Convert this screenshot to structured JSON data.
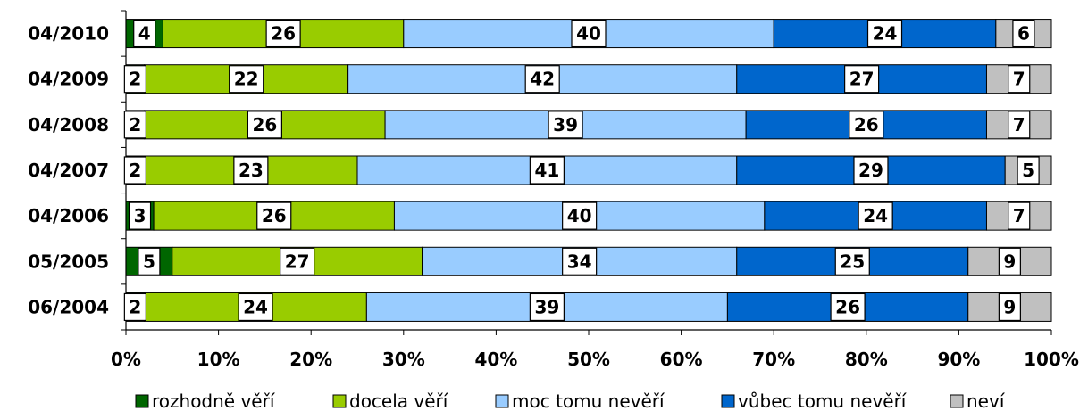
{
  "chart_data": {
    "type": "bar",
    "orientation": "horizontal",
    "stacked": "percent",
    "categories": [
      "04/2010",
      "04/2009",
      "04/2008",
      "04/2007",
      "04/2006",
      "05/2005",
      "06/2004"
    ],
    "series": [
      {
        "name": "rozhodně věří",
        "color": "#006600",
        "values": [
          4,
          2,
          2,
          2,
          3,
          5,
          2
        ]
      },
      {
        "name": "docela věří",
        "color": "#99cc00",
        "values": [
          26,
          22,
          26,
          23,
          26,
          27,
          24
        ]
      },
      {
        "name": "moc tomu nevěří",
        "color": "#99ccff",
        "values": [
          40,
          42,
          39,
          41,
          40,
          34,
          39
        ]
      },
      {
        "name": "vůbec tomu nevěří",
        "color": "#0066cc",
        "values": [
          24,
          27,
          26,
          29,
          24,
          25,
          26
        ]
      },
      {
        "name": "neví",
        "color": "#c0c0c0",
        "values": [
          6,
          7,
          7,
          5,
          7,
          9,
          9
        ]
      }
    ],
    "xlim": [
      0,
      100
    ],
    "x_ticks": [
      "0%",
      "10%",
      "20%",
      "30%",
      "40%",
      "50%",
      "60%",
      "70%",
      "80%",
      "90%",
      "100%"
    ],
    "grid": false,
    "legend": "bottom"
  }
}
